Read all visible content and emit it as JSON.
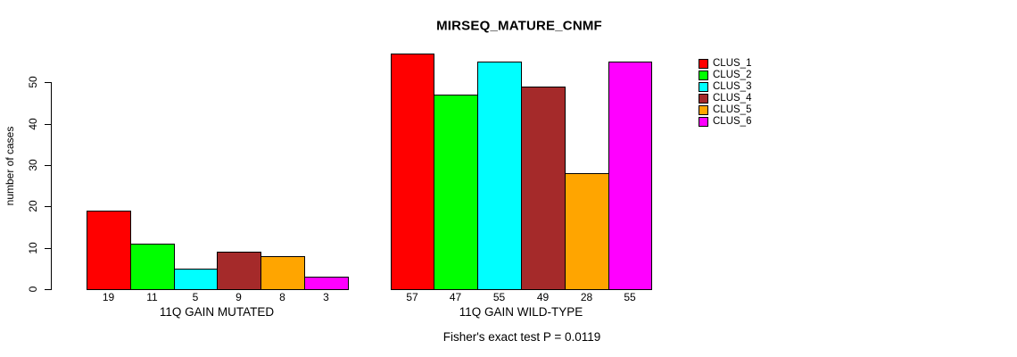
{
  "chart_data": {
    "type": "bar",
    "title": "MIRSEQ_MATURE_CNMF",
    "ylabel": "number of cases",
    "xlabel": "",
    "yticks": [
      0,
      10,
      20,
      30,
      40,
      50
    ],
    "ylim": [
      0,
      57
    ],
    "grid": false,
    "legend_position": "right-outside",
    "series": [
      {
        "name": "CLUS_1",
        "color": "#FF0000"
      },
      {
        "name": "CLUS_2",
        "color": "#00FF00"
      },
      {
        "name": "CLUS_3",
        "color": "#00FFFF"
      },
      {
        "name": "CLUS_4",
        "color": "#A52A2A"
      },
      {
        "name": "CLUS_5",
        "color": "#FFA500"
      },
      {
        "name": "CLUS_6",
        "color": "#FF00FF"
      }
    ],
    "groups": [
      {
        "label": "11Q GAIN MUTATED",
        "values": [
          19,
          11,
          5,
          9,
          8,
          3
        ]
      },
      {
        "label": "11Q GAIN WILD-TYPE",
        "values": [
          57,
          47,
          55,
          49,
          28,
          55
        ]
      }
    ],
    "annotation": "Fisher's exact test P = 0.0119"
  }
}
